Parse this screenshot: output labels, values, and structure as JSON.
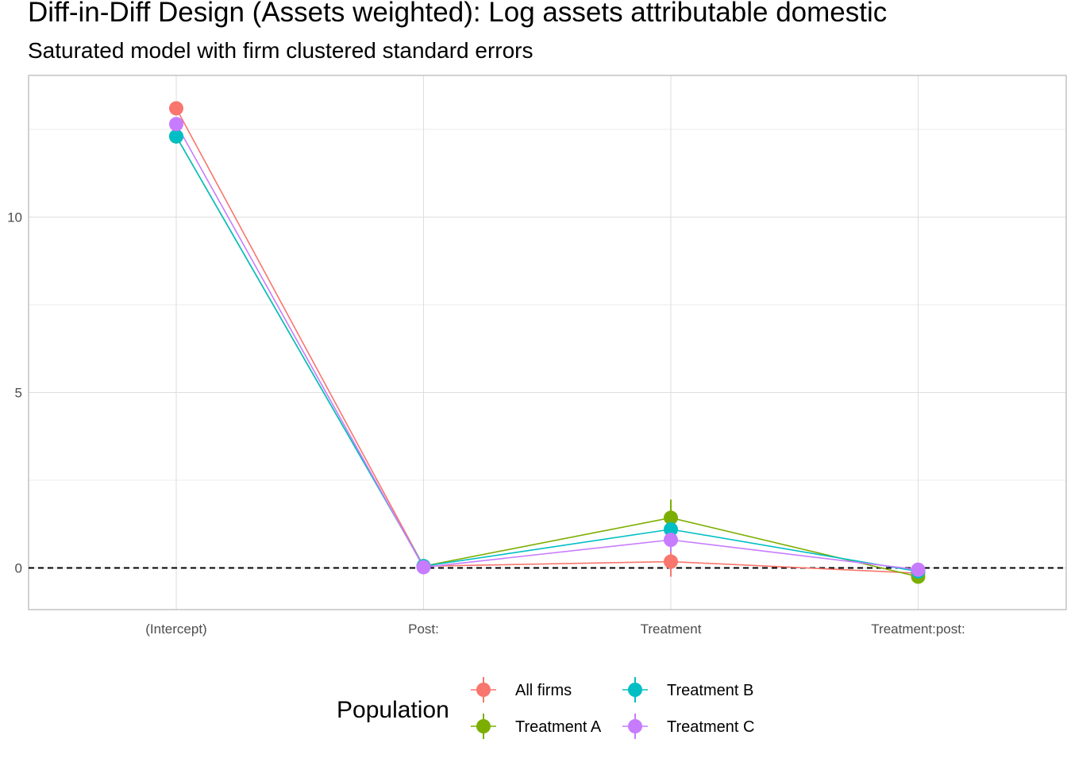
{
  "chart_data": {
    "type": "line",
    "title": "Diff-in-Diff Design (Assets weighted): Log assets attributable domestic",
    "subtitle": "Saturated model with firm clustered standard errors",
    "xlabel": "",
    "ylabel": "",
    "categories": [
      "(Intercept)",
      "Post:",
      "Treatment",
      "Treatment:post:"
    ],
    "yticks": [
      0,
      5,
      10
    ],
    "ylim": [
      -1.2,
      14.0
    ],
    "grid": true,
    "reference_line": {
      "y": 0,
      "style": "dashed"
    },
    "legend": {
      "title": "Population",
      "position": "bottom"
    },
    "series": [
      {
        "name": "All firms",
        "color": "#F8766D",
        "values": [
          13.1,
          0.05,
          0.18,
          -0.15
        ],
        "lower": [
          13.0,
          0.0,
          -0.25,
          -0.2
        ],
        "upper": [
          13.2,
          0.1,
          0.6,
          -0.1
        ]
      },
      {
        "name": "Treatment A",
        "color": "#7CAE00",
        "values": [
          12.3,
          0.05,
          1.43,
          -0.25
        ],
        "lower": [
          12.1,
          0.0,
          0.9,
          -0.45
        ],
        "upper": [
          12.5,
          0.1,
          1.95,
          -0.05
        ]
      },
      {
        "name": "Treatment B",
        "color": "#00BFC4",
        "values": [
          12.3,
          0.05,
          1.1,
          -0.1
        ],
        "lower": [
          12.2,
          0.0,
          0.85,
          -0.2
        ],
        "upper": [
          12.4,
          0.1,
          1.35,
          0.0
        ]
      },
      {
        "name": "Treatment C",
        "color": "#C77CFF",
        "values": [
          12.65,
          0.02,
          0.8,
          -0.05
        ],
        "lower": [
          12.55,
          -0.03,
          0.45,
          -0.2
        ],
        "upper": [
          12.75,
          0.07,
          1.15,
          0.15
        ]
      }
    ]
  }
}
